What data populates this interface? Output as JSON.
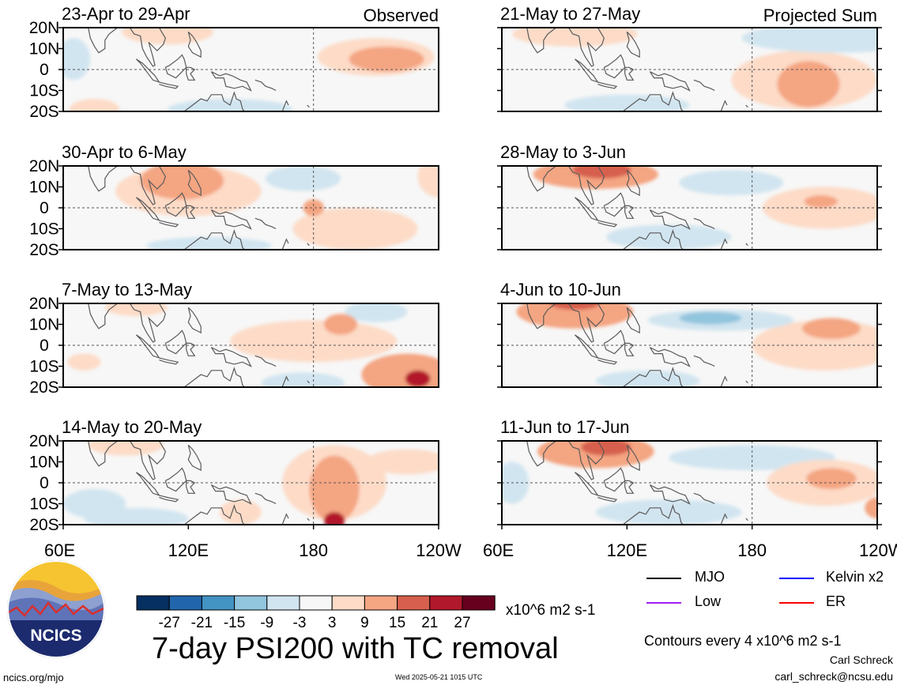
{
  "figure": {
    "title": "7-day PSI200 with TC removal",
    "observed_label": "Observed",
    "projected_label": "Projected Sum",
    "units": "x10^6 m2 s-1",
    "contour_note": "Contours every 4 x10^6 m2 s-1",
    "credit_name": "Carl Schreck",
    "credit_email": "carl_schreck@ncsu.edu",
    "url": "ncics.org/mjo",
    "timestamp": "Wed 2025-05-21 1015 UTC",
    "logo_text": "NCICS"
  },
  "legend": [
    {
      "label": "MJO",
      "color": "#000000"
    },
    {
      "label": "Kelvin x2",
      "color": "#0000ff"
    },
    {
      "label": "Low",
      "color": "#a020f0"
    },
    {
      "label": "ER",
      "color": "#ff0000"
    }
  ],
  "chart_data": {
    "type": "heatmap",
    "variable": "PSI200",
    "x_ticks": [
      "60E",
      "120E",
      "180",
      "120W"
    ],
    "y_ticks": [
      "20N",
      "10N",
      "0",
      "10S",
      "20S"
    ],
    "xlim": [
      60,
      240
    ],
    "ylim": [
      -20,
      20
    ],
    "colorbar": {
      "tick_labels": [
        "-27",
        "-21",
        "-15",
        "-9",
        "-3",
        "3",
        "9",
        "15",
        "21",
        "27"
      ],
      "colors": [
        "#053061",
        "#2166ac",
        "#4393c3",
        "#92c5de",
        "#d1e5f0",
        "#f7f7f7",
        "#fddbc7",
        "#f4a582",
        "#d6604d",
        "#b2182b",
        "#67001f"
      ]
    },
    "panels": [
      {
        "label": "23-Apr to 29-Apr",
        "column": "Observed",
        "blobs": [
          {
            "lon": 210,
            "lat": 6,
            "rx": 28,
            "ry": 9,
            "v": 9
          },
          {
            "lon": 215,
            "lat": 5,
            "rx": 18,
            "ry": 6,
            "v": 15
          },
          {
            "lon": 110,
            "lat": 18,
            "rx": 22,
            "ry": 6,
            "v": 6
          },
          {
            "lon": 75,
            "lat": -19,
            "rx": 12,
            "ry": 5,
            "v": 9
          },
          {
            "lon": 140,
            "lat": -19,
            "rx": 30,
            "ry": 5,
            "v": -6
          },
          {
            "lon": 65,
            "lat": 5,
            "rx": 8,
            "ry": 10,
            "v": -4
          }
        ]
      },
      {
        "label": "21-May to 27-May",
        "column": "Projected Sum",
        "blobs": [
          {
            "lon": 220,
            "lat": 15,
            "rx": 45,
            "ry": 7,
            "v": -8
          },
          {
            "lon": 207,
            "lat": -7,
            "rx": 15,
            "ry": 11,
            "v": 12
          },
          {
            "lon": 205,
            "lat": -5,
            "rx": 35,
            "ry": 14,
            "v": 6
          },
          {
            "lon": 95,
            "lat": 17,
            "rx": 30,
            "ry": 6,
            "v": 6
          },
          {
            "lon": 120,
            "lat": -17,
            "rx": 30,
            "ry": 5,
            "v": -4
          }
        ]
      },
      {
        "label": "30-Apr to 6-May",
        "column": "Observed",
        "blobs": [
          {
            "lon": 117,
            "lat": 13,
            "rx": 20,
            "ry": 9,
            "v": 14
          },
          {
            "lon": 120,
            "lat": 8,
            "rx": 35,
            "ry": 12,
            "v": 6
          },
          {
            "lon": 240,
            "lat": 15,
            "rx": 10,
            "ry": 10,
            "v": 8
          },
          {
            "lon": 180,
            "lat": 0,
            "rx": 5,
            "ry": 4,
            "v": 11
          },
          {
            "lon": 175,
            "lat": 14,
            "rx": 18,
            "ry": 6,
            "v": -6
          },
          {
            "lon": 200,
            "lat": -10,
            "rx": 30,
            "ry": 10,
            "v": 5
          },
          {
            "lon": 130,
            "lat": -18,
            "rx": 30,
            "ry": 4,
            "v": -4
          }
        ]
      },
      {
        "label": "28-May to 3-Jun",
        "column": "Projected Sum",
        "blobs": [
          {
            "lon": 105,
            "lat": 16,
            "rx": 30,
            "ry": 7,
            "v": 13
          },
          {
            "lon": 108,
            "lat": 18,
            "rx": 14,
            "ry": 4,
            "v": 21
          },
          {
            "lon": 213,
            "lat": 3,
            "rx": 8,
            "ry": 3,
            "v": 12
          },
          {
            "lon": 215,
            "lat": 0,
            "rx": 30,
            "ry": 10,
            "v": 6
          },
          {
            "lon": 170,
            "lat": 12,
            "rx": 25,
            "ry": 6,
            "v": -4
          },
          {
            "lon": 140,
            "lat": -14,
            "rx": 30,
            "ry": 6,
            "v": -5
          }
        ]
      },
      {
        "label": "7-May to 13-May",
        "column": "Observed",
        "blobs": [
          {
            "lon": 193,
            "lat": 10,
            "rx": 8,
            "ry": 5,
            "v": 12
          },
          {
            "lon": 225,
            "lat": -14,
            "rx": 22,
            "ry": 10,
            "v": 11
          },
          {
            "lon": 230,
            "lat": -16,
            "rx": 6,
            "ry": 4,
            "v": 22
          },
          {
            "lon": 180,
            "lat": 2,
            "rx": 40,
            "ry": 10,
            "v": 5
          },
          {
            "lon": 175,
            "lat": -18,
            "rx": 20,
            "ry": 5,
            "v": -6
          },
          {
            "lon": 210,
            "lat": 16,
            "rx": 15,
            "ry": 5,
            "v": -6
          },
          {
            "lon": 70,
            "lat": -8,
            "rx": 8,
            "ry": 4,
            "v": 5
          },
          {
            "lon": 95,
            "lat": 18,
            "rx": 15,
            "ry": 4,
            "v": 4
          }
        ]
      },
      {
        "label": "4-Jun to 10-Jun",
        "column": "Projected Sum",
        "blobs": [
          {
            "lon": 95,
            "lat": 16,
            "rx": 28,
            "ry": 8,
            "v": 12
          },
          {
            "lon": 95,
            "lat": 20,
            "rx": 12,
            "ry": 3,
            "v": 20
          },
          {
            "lon": 218,
            "lat": 8,
            "rx": 14,
            "ry": 5,
            "v": 12
          },
          {
            "lon": 215,
            "lat": 0,
            "rx": 35,
            "ry": 12,
            "v": 6
          },
          {
            "lon": 165,
            "lat": 12,
            "rx": 35,
            "ry": 5,
            "v": -6
          },
          {
            "lon": 160,
            "lat": 13,
            "rx": 15,
            "ry": 3,
            "v": -10
          },
          {
            "lon": 130,
            "lat": -17,
            "rx": 25,
            "ry": 5,
            "v": -4
          }
        ]
      },
      {
        "label": "14-May to 20-May",
        "column": "Observed",
        "blobs": [
          {
            "lon": 190,
            "lat": -3,
            "rx": 12,
            "ry": 16,
            "v": 12
          },
          {
            "lon": 190,
            "lat": 0,
            "rx": 25,
            "ry": 18,
            "v": 6
          },
          {
            "lon": 190,
            "lat": -18,
            "rx": 5,
            "ry": 4,
            "v": 22
          },
          {
            "lon": 145,
            "lat": -14,
            "rx": 10,
            "ry": 6,
            "v": 8
          },
          {
            "lon": 90,
            "lat": 18,
            "rx": 18,
            "ry": 5,
            "v": 6
          },
          {
            "lon": 95,
            "lat": -17,
            "rx": 25,
            "ry": 5,
            "v": -8
          },
          {
            "lon": 75,
            "lat": -10,
            "rx": 15,
            "ry": 7,
            "v": -6
          },
          {
            "lon": 225,
            "lat": 10,
            "rx": 20,
            "ry": 6,
            "v": 4
          }
        ]
      },
      {
        "label": "11-Jun to 17-Jun",
        "column": "Projected Sum",
        "blobs": [
          {
            "lon": 105,
            "lat": 15,
            "rx": 28,
            "ry": 8,
            "v": 10
          },
          {
            "lon": 110,
            "lat": 17,
            "rx": 12,
            "ry": 4,
            "v": 16
          },
          {
            "lon": 218,
            "lat": 2,
            "rx": 12,
            "ry": 5,
            "v": 12
          },
          {
            "lon": 215,
            "lat": 0,
            "rx": 28,
            "ry": 11,
            "v": 6
          },
          {
            "lon": 180,
            "lat": 12,
            "rx": 40,
            "ry": 6,
            "v": -5
          },
          {
            "lon": 160,
            "lat": 10,
            "rx": 8,
            "ry": 3,
            "v": -8
          },
          {
            "lon": 140,
            "lat": -14,
            "rx": 35,
            "ry": 6,
            "v": -5
          },
          {
            "lon": 65,
            "lat": 0,
            "rx": 8,
            "ry": 10,
            "v": -4
          },
          {
            "lon": 240,
            "lat": -12,
            "rx": 6,
            "ry": 5,
            "v": 10
          }
        ]
      }
    ]
  }
}
